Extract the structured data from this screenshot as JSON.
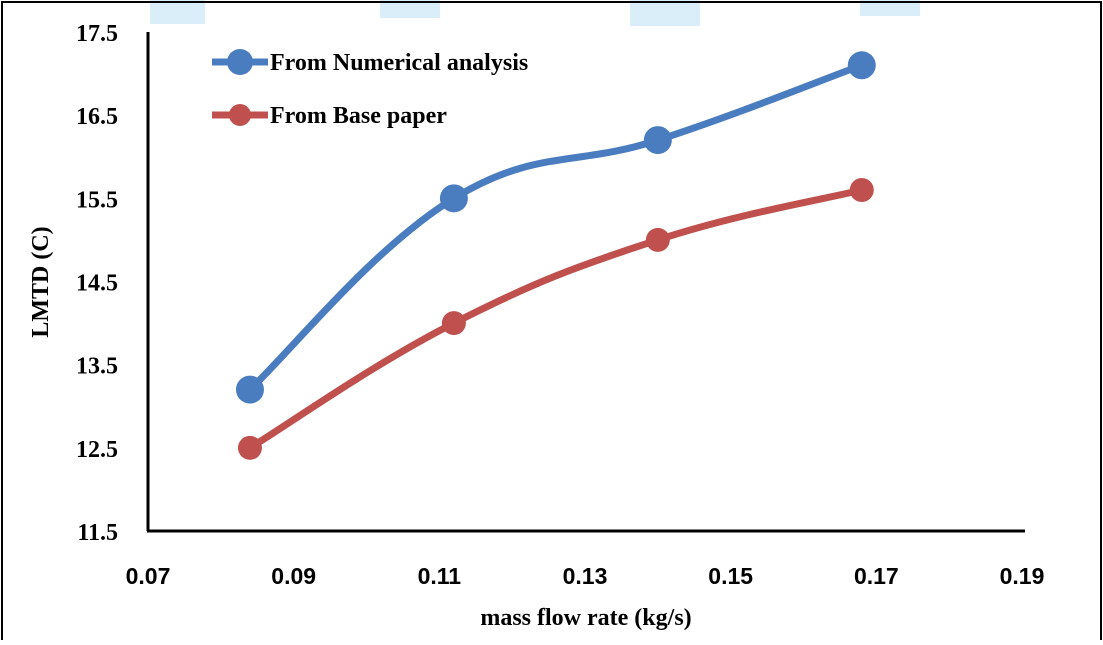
{
  "chart_data": {
    "type": "line",
    "title": "",
    "xlabel": "mass flow rate (kg/s)",
    "ylabel": "LMTD (C)",
    "xlim": [
      0.07,
      0.19
    ],
    "ylim": [
      11.5,
      17.5
    ],
    "x_ticks": [
      "0.07",
      "0.09",
      "0.11",
      "0.13",
      "0.15",
      "0.17",
      "0.19"
    ],
    "y_ticks": [
      "11.5",
      "12.5",
      "13.5",
      "14.5",
      "15.5",
      "16.5",
      "17.5"
    ],
    "grid": false,
    "legend_position": "top-left",
    "series": [
      {
        "name": "From Numerical analysis",
        "color": "#4a7dc0",
        "x": [
          0.084,
          0.112,
          0.14,
          0.168
        ],
        "y": [
          13.2,
          15.5,
          16.2,
          17.1
        ]
      },
      {
        "name": "From Base paper",
        "color": "#c0504d",
        "x": [
          0.084,
          0.112,
          0.14,
          0.168
        ],
        "y": [
          12.5,
          14.0,
          15.0,
          15.6
        ]
      }
    ]
  },
  "decor": {
    "watermark_color": "#d9eef9"
  }
}
